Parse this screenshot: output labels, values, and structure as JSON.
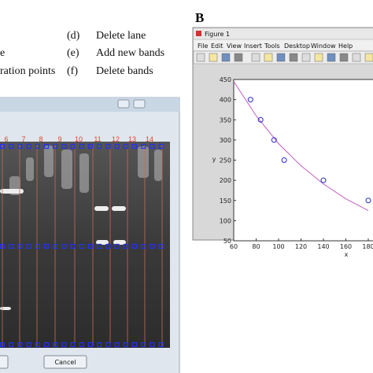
{
  "panel_label": "B",
  "left_fragments": [
    "e",
    "ration points"
  ],
  "legend": [
    {
      "key": "(d)",
      "text": "Delete lane"
    },
    {
      "key": "(e)",
      "text": "Add new bands"
    },
    {
      "key": "(f)",
      "text": "Delete bands"
    }
  ],
  "gel_window": {
    "lane_numbers": [
      "6",
      "7",
      "8",
      "9",
      "10",
      "11",
      "12",
      "13",
      "14"
    ],
    "cancel_button": "Cancel"
  },
  "figure_window": {
    "title": "Figure 1",
    "menu": [
      "File",
      "Edit",
      "View",
      "Insert",
      "Tools",
      "Desktop",
      "Window",
      "Help"
    ],
    "plot": {
      "type": "scatter",
      "xlabel": "x",
      "ylabel": "y",
      "xlim": [
        60,
        180
      ],
      "ylim": [
        50,
        450
      ],
      "xticks": [
        60,
        80,
        100,
        120,
        140,
        160,
        180
      ],
      "yticks": [
        50,
        100,
        150,
        200,
        250,
        300,
        350,
        400,
        450
      ],
      "x": [
        75,
        84,
        96,
        105,
        140,
        180
      ],
      "y": [
        400,
        350,
        300,
        250,
        200,
        150
      ],
      "fit": {
        "x": [
          60,
          80,
          100,
          120,
          140,
          160,
          180
        ],
        "y": [
          445,
          360,
          291,
          236,
          191,
          154,
          125
        ],
        "color": "#c060c0"
      },
      "marker_color": "#2a2ad0"
    }
  }
}
